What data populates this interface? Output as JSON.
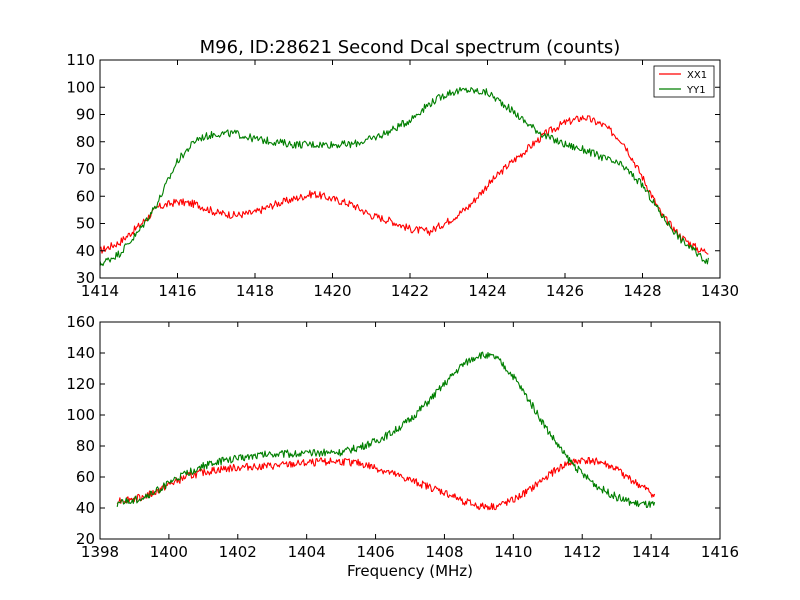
{
  "chart_data": [
    {
      "type": "line",
      "title": "M96, ID:28621 Second Dcal spectrum (counts)",
      "xlabel": "",
      "ylabel": "",
      "xlim": [
        1414,
        1430
      ],
      "ylim": [
        30,
        110
      ],
      "xticks": [
        "1414",
        "1416",
        "1418",
        "1420",
        "1422",
        "1424",
        "1426",
        "1428",
        "1430"
      ],
      "yticks": [
        "30",
        "40",
        "50",
        "60",
        "70",
        "80",
        "90",
        "100",
        "110"
      ],
      "legend": {
        "position": "top-right",
        "entries": [
          "XX1",
          "YY1"
        ]
      },
      "series": [
        {
          "name": "XX1",
          "color": "#ff0000",
          "x": [
            1414.0,
            1414.5,
            1415.0,
            1415.5,
            1416.0,
            1416.5,
            1417.0,
            1417.5,
            1418.0,
            1418.5,
            1419.0,
            1419.5,
            1420.0,
            1420.5,
            1421.0,
            1421.5,
            1422.0,
            1422.5,
            1423.0,
            1423.5,
            1424.0,
            1424.5,
            1425.0,
            1425.5,
            1426.0,
            1426.5,
            1427.0,
            1427.5,
            1428.0,
            1428.5,
            1429.0,
            1429.5,
            1429.7
          ],
          "y": [
            40,
            43,
            49,
            56,
            58,
            57,
            54,
            53,
            54,
            57,
            59,
            61,
            59,
            57,
            53,
            51,
            48,
            47,
            51,
            56,
            64,
            71,
            77,
            83,
            87,
            89,
            86,
            80,
            67,
            53,
            45,
            40,
            40
          ]
        },
        {
          "name": "YY1",
          "color": "#007f00",
          "x": [
            1414.0,
            1414.5,
            1415.0,
            1415.5,
            1416.0,
            1416.5,
            1417.0,
            1417.5,
            1418.0,
            1418.5,
            1419.0,
            1419.5,
            1420.0,
            1420.5,
            1421.0,
            1421.5,
            1422.0,
            1422.5,
            1423.0,
            1423.5,
            1424.0,
            1424.5,
            1425.0,
            1425.5,
            1426.0,
            1426.5,
            1427.0,
            1427.5,
            1428.0,
            1428.5,
            1429.0,
            1429.5,
            1429.7
          ],
          "y": [
            35,
            39,
            47,
            58,
            73,
            81,
            83,
            83,
            81,
            80,
            79,
            79,
            79,
            79,
            81,
            84,
            88,
            94,
            98,
            99,
            98,
            93,
            87,
            82,
            79,
            77,
            74,
            71,
            64,
            53,
            44,
            38,
            36
          ]
        }
      ]
    },
    {
      "type": "line",
      "title": "",
      "xlabel": "Frequency (MHz)",
      "ylabel": "",
      "xlim": [
        1398,
        1416
      ],
      "ylim": [
        20,
        160
      ],
      "xticks": [
        "1398",
        "1400",
        "1402",
        "1404",
        "1406",
        "1408",
        "1410",
        "1412",
        "1414",
        "1416"
      ],
      "yticks": [
        "20",
        "40",
        "60",
        "80",
        "100",
        "120",
        "140",
        "160"
      ],
      "series": [
        {
          "name": "XX1",
          "color": "#ff0000",
          "x": [
            1398.5,
            1399.0,
            1399.5,
            1400.0,
            1400.5,
            1401.0,
            1401.5,
            1402.0,
            1402.5,
            1403.0,
            1403.5,
            1404.0,
            1404.5,
            1405.0,
            1405.5,
            1406.0,
            1406.5,
            1407.0,
            1407.5,
            1408.0,
            1408.5,
            1409.0,
            1409.5,
            1410.0,
            1410.5,
            1411.0,
            1411.5,
            1412.0,
            1412.5,
            1413.0,
            1413.5,
            1414.0,
            1414.1
          ],
          "y": [
            45,
            46,
            49,
            55,
            60,
            63,
            65,
            66,
            67,
            67,
            68,
            69,
            70,
            70,
            69,
            66,
            62,
            58,
            54,
            50,
            45,
            41,
            41,
            45,
            52,
            61,
            68,
            71,
            70,
            65,
            57,
            50,
            47
          ]
        },
        {
          "name": "YY1",
          "color": "#007f00",
          "x": [
            1398.5,
            1399.0,
            1399.5,
            1400.0,
            1400.5,
            1401.0,
            1401.5,
            1402.0,
            1402.5,
            1403.0,
            1403.5,
            1404.0,
            1404.5,
            1405.0,
            1405.5,
            1406.0,
            1406.5,
            1407.0,
            1407.5,
            1408.0,
            1408.5,
            1409.0,
            1409.5,
            1410.0,
            1410.5,
            1411.0,
            1411.5,
            1412.0,
            1412.5,
            1413.0,
            1413.5,
            1414.0,
            1414.1
          ],
          "y": [
            43,
            45,
            49,
            56,
            62,
            67,
            70,
            72,
            74,
            75,
            75,
            75,
            76,
            76,
            79,
            83,
            89,
            97,
            108,
            120,
            132,
            139,
            137,
            125,
            108,
            90,
            74,
            62,
            53,
            47,
            43,
            42,
            42
          ]
        }
      ]
    }
  ]
}
